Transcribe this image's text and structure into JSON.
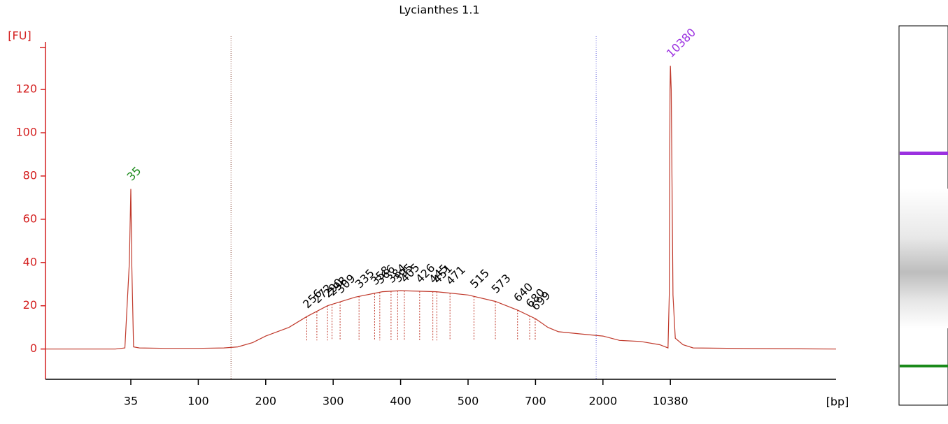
{
  "chart_data": {
    "type": "line",
    "title": "Lycianthes 1.1",
    "y_label": "[FU]",
    "x_label": "[bp]",
    "ylim": [
      -14,
      142
    ],
    "yticks": [
      0,
      20,
      40,
      60,
      80,
      100,
      120
    ],
    "xlim": [
      15,
      40000
    ],
    "xticks": [
      35,
      100,
      200,
      300,
      400,
      500,
      700,
      2000,
      10380
    ],
    "axis_color": "#d42020",
    "series": [
      {
        "name": "Lycianthes 1.1",
        "color": "#c0392b",
        "x": [
          15,
          30,
          33,
          34.5,
          35,
          35.5,
          36.5,
          40,
          60,
          100,
          130,
          150,
          175,
          200,
          230,
          256,
          290,
          330,
          370,
          400,
          450,
          500,
          573,
          640,
          700,
          850,
          1000,
          1400,
          2000,
          3000,
          5000,
          8000,
          9800,
          10100,
          10300,
          10380,
          10450,
          10600,
          10800,
          11500,
          12500,
          20000,
          40000
        ],
        "values": [
          0,
          0,
          0.5,
          40,
          74,
          40,
          1,
          0.5,
          0.3,
          0.3,
          0.5,
          1,
          3,
          6,
          10,
          15,
          20,
          24,
          26.5,
          27,
          26.5,
          25,
          22,
          18,
          14,
          10,
          8,
          7,
          6,
          4,
          3.5,
          2,
          0.5,
          25,
          120,
          131,
          120,
          25,
          5,
          2,
          0.5,
          0.2,
          0
        ]
      }
    ],
    "region": [
      140,
      1800
    ],
    "peaks": [
      35,
      256,
      272,
      290,
      298,
      309,
      335,
      358,
      366,
      384,
      395,
      405,
      426,
      445,
      451,
      471,
      515,
      573,
      640,
      680,
      699,
      10380
    ],
    "peak_colors": [
      "#1a8a1a",
      "#000000",
      "#000000",
      "#000000",
      "#000000",
      "#000000",
      "#000000",
      "#000000",
      "#000000",
      "#000000",
      "#000000",
      "#000000",
      "#000000",
      "#000000",
      "#000000",
      "#000000",
      "#000000",
      "#000000",
      "#000000",
      "#000000",
      "#000000",
      "#9b30e0"
    ]
  }
}
